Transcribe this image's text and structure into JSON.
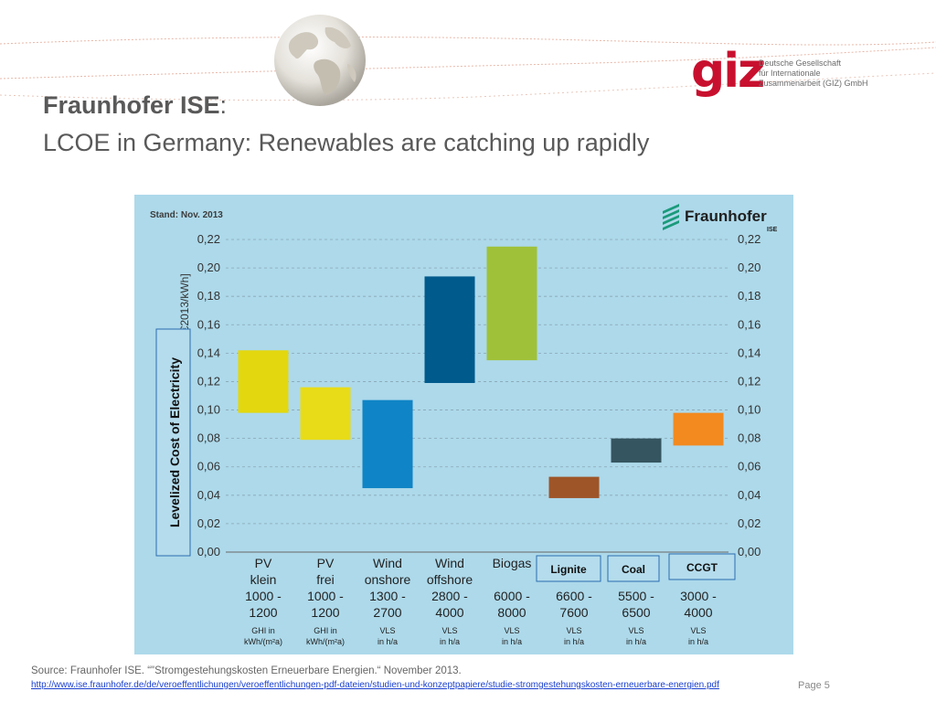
{
  "slide": {
    "title_bold": "Fraunhofer ISE",
    "title_colon": ":",
    "subtitle": "LCOE in Germany: Renewables are catching up rapidly",
    "source": "Source: Fraunhofer ISE. “\"Stromgestehungskosten Erneuerbare Energien.“ November 2013.",
    "link": "http://www.ise.fraunhofer.de/de/veroeffentlichungen/veroeffentlichungen-pdf-dateien/studien-und-konzeptpapiere/studie-stromgestehungskosten-erneuerbare-energien.pdf",
    "page": "Page 5"
  },
  "logo": {
    "mark": "giz",
    "lines": [
      "Deutsche Gesellschaft",
      "für Internationale",
      "Zusammenarbeit (GIZ) GmbH"
    ],
    "color": "#c8102e"
  },
  "chart_data": {
    "type": "bar",
    "subtype": "floating-range",
    "stand": "Stand: Nov. 2013",
    "brand": "Fraunhofer",
    "brand_sub": "ISE",
    "ylabel_orig": "[€2013/kWh]",
    "ylabel_overlay": "Levelized Cost of Electricity",
    "ylim": [
      0,
      0.22
    ],
    "yticks": [
      "0,00",
      "0,02",
      "0,04",
      "0,06",
      "0,08",
      "0,10",
      "0,12",
      "0,14",
      "0,16",
      "0,18",
      "0,20",
      "0,22"
    ],
    "grid": "horizontal dashed",
    "categories": [
      {
        "name": [
          "PV",
          "klein"
        ],
        "range": [
          "1000 -",
          "1200"
        ],
        "unit": [
          "GHI in",
          "kWh/(m²a)"
        ],
        "low": 0.098,
        "high": 0.142,
        "color": "#e3d80f"
      },
      {
        "name": [
          "PV",
          "frei"
        ],
        "range": [
          "1000 -",
          "1200"
        ],
        "unit": [
          "GHI in",
          "kWh/(m²a)"
        ],
        "low": 0.079,
        "high": 0.116,
        "color": "#e8dc18"
      },
      {
        "name": [
          "Wind",
          "onshore"
        ],
        "range": [
          "1300 -",
          "2700"
        ],
        "unit": [
          "VLS",
          "in h/a"
        ],
        "low": 0.045,
        "high": 0.107,
        "color": "#0f84c6"
      },
      {
        "name": [
          "Wind",
          "offshore"
        ],
        "range": [
          "2800 -",
          "4000"
        ],
        "unit": [
          "VLS",
          "in h/a"
        ],
        "low": 0.119,
        "high": 0.194,
        "color": "#005a8c"
      },
      {
        "name": [
          "Biogas"
        ],
        "range": [
          "6000 -",
          "8000"
        ],
        "unit": [
          "VLS",
          "in h/a"
        ],
        "low": 0.135,
        "high": 0.215,
        "color": "#9fc13a"
      },
      {
        "name": [
          "Lignite"
        ],
        "range": [
          "6600 -",
          "7600"
        ],
        "unit": [
          "VLS",
          "in h/a"
        ],
        "low": 0.038,
        "high": 0.053,
        "color": "#9e5528"
      },
      {
        "name": [
          "Coal"
        ],
        "range": [
          "5500 -",
          "6500"
        ],
        "unit": [
          "VLS",
          "in h/a"
        ],
        "low": 0.063,
        "high": 0.08,
        "color": "#355560"
      },
      {
        "name": [
          "CCGT"
        ],
        "range": [
          "3000 -",
          "4000"
        ],
        "unit": [
          "VLS",
          "in h/a"
        ],
        "low": 0.075,
        "high": 0.098,
        "color": "#f28a1f"
      }
    ],
    "overlay_labels": [
      "Lignite",
      "Coal",
      "CCGT"
    ]
  },
  "colors": {
    "chart_bg": "#add9ea",
    "title": "#595959",
    "overlay_border": "#2a6db0"
  }
}
